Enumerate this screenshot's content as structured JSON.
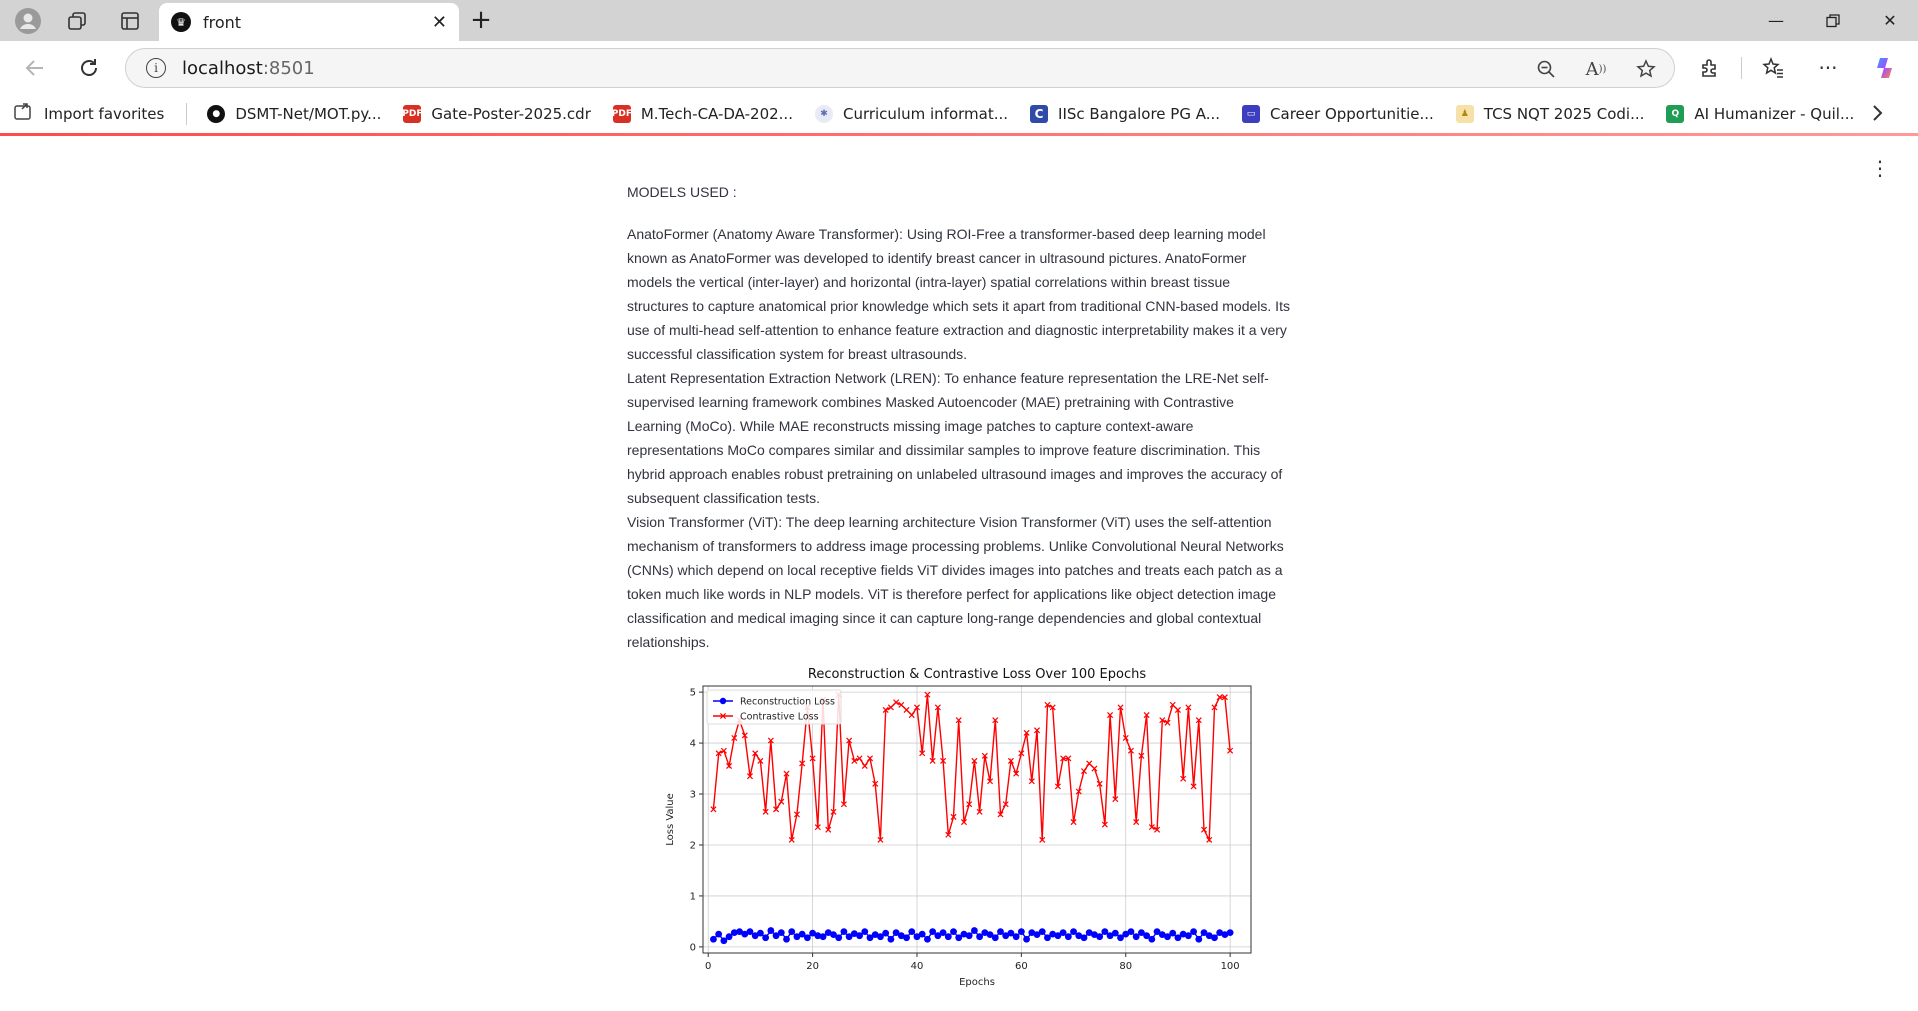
{
  "browser": {
    "tab_title": "front",
    "tab_icon": "streamlit-crown-icon",
    "url_host": "localhost",
    "url_port": ":8501",
    "bookmarks": [
      {
        "label": "Import favorites",
        "icon": "import-icon",
        "color": "#555555"
      },
      {
        "label": "DSMT-Net/MOT.py...",
        "icon": "github-icon",
        "color": "#111111"
      },
      {
        "label": "Gate-Poster-2025.cdr",
        "icon": "pdf-icon",
        "color": "#d93025"
      },
      {
        "label": "M.Tech-CA-DA-202...",
        "icon": "pdf-icon",
        "color": "#d93025"
      },
      {
        "label": "Curriculum informat...",
        "icon": "curriculum-icon",
        "color": "#5b6bb5"
      },
      {
        "label": "IISc Bangalore PG A...",
        "icon": "c-letter-icon",
        "color": "#2f4aa8"
      },
      {
        "label": "Career Opportunitie...",
        "icon": "career-icon",
        "color": "#3d3dbf"
      },
      {
        "label": "TCS NQT 2025 Codi...",
        "icon": "tcs-icon",
        "color": "#e3b13c"
      },
      {
        "label": "AI Humanizer - Quil...",
        "icon": "quillbot-icon",
        "color": "#1f9d55"
      }
    ]
  },
  "content": {
    "models_heading": "MODELS USED :",
    "paragraphs": [
      "AnatoFormer (Anatomy Aware Transformer): Using ROI-Free a transformer-based deep learning model known as AnatoFormer was developed to identify breast cancer in ultrasound pictures. AnatoFormer models the vertical (inter-layer) and horizontal (intra-layer) spatial correlations within breast tissue structures to capture anatomical prior knowledge which sets it apart from traditional CNN-based models. Its use of multi-head self-attention to enhance feature extraction and diagnostic interpretability makes it a very successful classification system for breast ultrasounds.",
      "Latent Representation Extraction Network (LREN): To enhance feature representation the LRE-Net self-supervised learning framework combines Masked Autoencoder (MAE) pretraining with Contrastive Learning (MoCo). While MAE reconstructs missing image patches to capture context-aware representations MoCo compares similar and dissimilar samples to improve feature discrimination. This hybrid approach enables robust pretraining on unlabeled ultrasound images and improves the accuracy of subsequent classification tests.",
      "Vision Transformer (ViT): The deep learning architecture Vision Transformer (ViT) uses the self-attention mechanism of transformers to address image processing problems. Unlike Convolutional Neural Networks (CNNs) which depend on local receptive fields ViT divides images into patches and treats each patch as a token much like words in NLP models. ViT is therefore perfect for applications like object detection image classification and medical imaging since it can capture long-range dependencies and global contextual relationships."
    ]
  },
  "chart_data": {
    "type": "line",
    "title": "Reconstruction & Contrastive Loss Over 100 Epochs",
    "xlabel": "Epochs",
    "ylabel": "Loss Value",
    "xlim": [
      0,
      100
    ],
    "ylim": [
      0,
      5
    ],
    "xticks": [
      0,
      20,
      40,
      60,
      80,
      100
    ],
    "yticks": [
      0,
      1,
      2,
      3,
      4,
      5
    ],
    "grid": true,
    "legend_position": "top-left",
    "x": [
      1,
      2,
      3,
      4,
      5,
      6,
      7,
      8,
      9,
      10,
      11,
      12,
      13,
      14,
      15,
      16,
      17,
      18,
      19,
      20,
      21,
      22,
      23,
      24,
      25,
      26,
      27,
      28,
      29,
      30,
      31,
      32,
      33,
      34,
      35,
      36,
      37,
      38,
      39,
      40,
      41,
      42,
      43,
      44,
      45,
      46,
      47,
      48,
      49,
      50,
      51,
      52,
      53,
      54,
      55,
      56,
      57,
      58,
      59,
      60,
      61,
      62,
      63,
      64,
      65,
      66,
      67,
      68,
      69,
      70,
      71,
      72,
      73,
      74,
      75,
      76,
      77,
      78,
      79,
      80,
      81,
      82,
      83,
      84,
      85,
      86,
      87,
      88,
      89,
      90,
      91,
      92,
      93,
      94,
      95,
      96,
      97,
      98,
      99,
      100
    ],
    "series": [
      {
        "name": "Reconstruction Loss",
        "color": "#0000ff",
        "marker": "circle",
        "values": [
          0.15,
          0.25,
          0.12,
          0.2,
          0.28,
          0.3,
          0.25,
          0.3,
          0.22,
          0.27,
          0.18,
          0.32,
          0.22,
          0.28,
          0.15,
          0.3,
          0.2,
          0.25,
          0.18,
          0.27,
          0.22,
          0.2,
          0.28,
          0.24,
          0.18,
          0.3,
          0.2,
          0.26,
          0.22,
          0.3,
          0.18,
          0.24,
          0.2,
          0.27,
          0.15,
          0.28,
          0.22,
          0.18,
          0.3,
          0.2,
          0.25,
          0.15,
          0.3,
          0.22,
          0.28,
          0.2,
          0.3,
          0.18,
          0.25,
          0.22,
          0.32,
          0.2,
          0.28,
          0.24,
          0.18,
          0.3,
          0.22,
          0.27,
          0.2,
          0.3,
          0.15,
          0.28,
          0.24,
          0.3,
          0.18,
          0.25,
          0.22,
          0.28,
          0.2,
          0.3,
          0.22,
          0.18,
          0.28,
          0.24,
          0.2,
          0.3,
          0.22,
          0.27,
          0.18,
          0.25,
          0.3,
          0.2,
          0.28,
          0.22,
          0.15,
          0.3,
          0.24,
          0.2,
          0.27,
          0.18,
          0.25,
          0.22,
          0.3,
          0.15,
          0.28,
          0.22,
          0.18,
          0.28,
          0.24,
          0.28
        ]
      },
      {
        "name": "Contrastive Loss",
        "color": "#ff0000",
        "marker": "x",
        "values": [
          2.7,
          3.8,
          3.85,
          3.55,
          4.1,
          4.45,
          4.15,
          3.35,
          3.8,
          3.65,
          2.65,
          4.05,
          2.7,
          2.85,
          3.4,
          2.1,
          2.6,
          3.6,
          4.7,
          3.7,
          2.35,
          4.85,
          2.3,
          2.65,
          4.95,
          2.8,
          4.05,
          3.65,
          3.7,
          3.55,
          3.7,
          3.2,
          2.1,
          4.65,
          4.7,
          4.8,
          4.75,
          4.65,
          4.55,
          4.7,
          3.8,
          4.95,
          3.65,
          4.7,
          3.65,
          2.2,
          2.55,
          4.45,
          2.45,
          2.8,
          3.65,
          2.65,
          3.75,
          3.25,
          4.45,
          2.6,
          2.8,
          3.65,
          3.4,
          3.8,
          4.2,
          3.25,
          4.25,
          2.1,
          4.75,
          4.7,
          3.15,
          3.7,
          3.7,
          2.45,
          3.05,
          3.45,
          3.6,
          3.5,
          3.2,
          2.4,
          4.55,
          2.9,
          4.7,
          4.1,
          3.85,
          2.45,
          3.75,
          4.55,
          2.35,
          2.3,
          4.45,
          4.4,
          4.75,
          4.65,
          3.3,
          4.7,
          3.15,
          4.45,
          2.3,
          2.1,
          4.7,
          4.9,
          4.9,
          3.85
        ]
      }
    ]
  }
}
